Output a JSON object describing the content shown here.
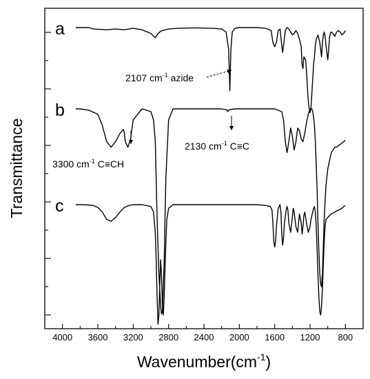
{
  "chart_data": {
    "type": "line",
    "xlabel": "Wavenumber(cm",
    "xlabel_sup": "-1",
    "xlabel_close": ")",
    "ylabel": "Transmittance",
    "xlim": [
      4200,
      600
    ],
    "x_reversed": true,
    "x_ticks": [
      4000,
      3600,
      3200,
      2800,
      2400,
      2000,
      1600,
      1200,
      800
    ],
    "y_ticks_labeled": false,
    "grid": false,
    "series": [
      {
        "name": "a",
        "x": [
          3850,
          3700,
          3650,
          3500,
          3400,
          3300,
          3200,
          3100,
          3000,
          2950,
          2930,
          2900,
          2870,
          2800,
          2700,
          2500,
          2300,
          2200,
          2150,
          2120,
          2107,
          2095,
          2080,
          2050,
          2000,
          1900,
          1800,
          1700,
          1640,
          1620,
          1600,
          1580,
          1560,
          1540,
          1520,
          1510,
          1495,
          1480,
          1460,
          1440,
          1420,
          1400,
          1380,
          1360,
          1340,
          1320,
          1300,
          1290,
          1280,
          1270,
          1250,
          1240,
          1230,
          1220,
          1210,
          1200,
          1190,
          1180,
          1170,
          1160,
          1150,
          1140,
          1130,
          1110,
          1090,
          1080,
          1070,
          1060,
          1050,
          1040,
          1030,
          1020,
          1000,
          990,
          980,
          970,
          960,
          940,
          920,
          900,
          880,
          860,
          840,
          820,
          800
        ],
        "y": [
          100,
          100,
          99,
          98.5,
          99,
          98.5,
          99.5,
          98.5,
          96,
          93,
          95,
          97,
          98,
          99,
          99.5,
          99.8,
          99.5,
          99,
          97,
          85,
          57,
          85,
          97,
          99.5,
          100,
          100,
          100,
          99.5,
          98,
          90,
          87,
          90,
          98,
          99,
          88,
          83,
          90,
          98,
          100,
          99,
          97,
          95,
          96,
          98,
          96,
          92,
          87,
          75,
          72,
          80,
          78,
          70,
          60,
          50,
          45,
          42,
          45,
          55,
          65,
          75,
          80,
          88,
          92,
          95,
          90,
          85,
          80,
          90,
          95,
          97,
          94,
          88,
          78,
          85,
          93,
          96,
          97,
          96,
          94,
          97,
          98,
          97,
          95,
          96,
          98
        ]
      },
      {
        "name": "b",
        "x": [
          3850,
          3800,
          3700,
          3600,
          3550,
          3500,
          3450,
          3400,
          3350,
          3310,
          3300,
          3290,
          3260,
          3230,
          3200,
          3100,
          3050,
          3000,
          2970,
          2950,
          2930,
          2910,
          2890,
          2880,
          2870,
          2860,
          2850,
          2840,
          2830,
          2800,
          2750,
          2600,
          2400,
          2200,
          2140,
          2130,
          2120,
          2050,
          1800,
          1700,
          1600,
          1560,
          1520,
          1500,
          1480,
          1460,
          1440,
          1420,
          1400,
          1380,
          1360,
          1340,
          1320,
          1300,
          1280,
          1260,
          1240,
          1220,
          1200,
          1180,
          1170,
          1160,
          1150,
          1140,
          1130,
          1120,
          1110,
          1100,
          1090,
          1080,
          1070,
          1060,
          1050,
          1040,
          1020,
          1000,
          980,
          960,
          940,
          920,
          900,
          880,
          860,
          840,
          820,
          800
        ],
        "y": [
          100,
          100,
          99.5,
          98,
          94,
          88,
          86,
          88,
          91,
          92.5,
          91,
          88,
          86,
          89,
          96,
          100,
          99.5,
          99,
          96,
          88,
          60,
          40,
          28,
          25,
          26,
          35,
          44,
          60,
          75,
          96,
          100,
          100,
          100,
          100,
          99.6,
          99,
          99.6,
          100,
          100,
          100,
          100,
          99.5,
          99,
          96,
          88,
          84,
          88,
          93,
          90,
          85,
          88,
          93,
          92,
          89,
          88,
          91,
          95,
          98,
          100,
          100,
          99,
          97,
          94,
          88,
          79,
          70,
          58,
          48,
          40,
          36,
          35,
          40,
          50,
          60,
          72,
          78,
          81,
          84,
          85,
          86,
          86,
          86.5,
          87,
          87.5,
          88,
          88.5
        ]
      },
      {
        "name": "c",
        "x": [
          3850,
          3800,
          3700,
          3650,
          3600,
          3550,
          3500,
          3450,
          3400,
          3350,
          3300,
          3250,
          3200,
          3100,
          3050,
          3000,
          2970,
          2950,
          2940,
          2930,
          2920,
          2910,
          2900,
          2890,
          2880,
          2870,
          2860,
          2850,
          2840,
          2830,
          2820,
          2800,
          2750,
          2600,
          2400,
          2200,
          2000,
          1800,
          1700,
          1650,
          1630,
          1620,
          1610,
          1600,
          1590,
          1580,
          1560,
          1540,
          1530,
          1520,
          1510,
          1500,
          1490,
          1470,
          1460,
          1450,
          1440,
          1420,
          1400,
          1390,
          1380,
          1360,
          1340,
          1330,
          1320,
          1300,
          1290,
          1280,
          1270,
          1260,
          1240,
          1220,
          1200,
          1190,
          1180,
          1170,
          1160,
          1150,
          1140,
          1130,
          1120,
          1110,
          1100,
          1090,
          1080,
          1070,
          1060,
          1050,
          1040,
          1030,
          1020,
          1000,
          980,
          960,
          940,
          920,
          900,
          880,
          860,
          840,
          820,
          800
        ],
        "y": [
          100,
          100,
          99.8,
          99.5,
          98.5,
          96,
          92,
          91,
          93,
          96,
          98.5,
          99.5,
          100,
          100,
          99.5,
          99,
          96,
          85,
          70,
          50,
          35,
          40,
          55,
          70,
          62,
          45,
          40,
          50,
          65,
          80,
          92,
          98,
          100,
          100,
          100,
          100,
          100,
          100,
          99.5,
          99,
          97,
          90,
          80,
          77,
          80,
          88,
          98,
          100,
          96,
          85,
          78,
          82,
          90,
          97,
          99,
          97,
          90,
          85,
          93,
          98,
          96,
          88,
          85,
          90,
          95,
          90,
          84,
          88,
          94,
          96,
          90,
          85,
          88,
          92,
          94,
          96,
          98,
          99,
          96,
          88,
          75,
          62,
          50,
          42,
          40,
          45,
          55,
          68,
          80,
          88,
          92,
          93,
          94,
          95,
          95.5,
          96,
          96.5,
          97,
          97.5,
          98,
          99,
          99.5
        ]
      }
    ],
    "annotations": [
      {
        "label": "2107 cm",
        "sup": "-1",
        "rest": " azide",
        "series": "a",
        "x": 2107
      },
      {
        "label": "3300 cm",
        "sup": "-1",
        "rest": " C≡CH",
        "series": "b",
        "x": 3300
      },
      {
        "label": "2130 cm",
        "sup": "-1",
        "rest": " C≡C",
        "series": "b",
        "x": 2130
      }
    ]
  }
}
